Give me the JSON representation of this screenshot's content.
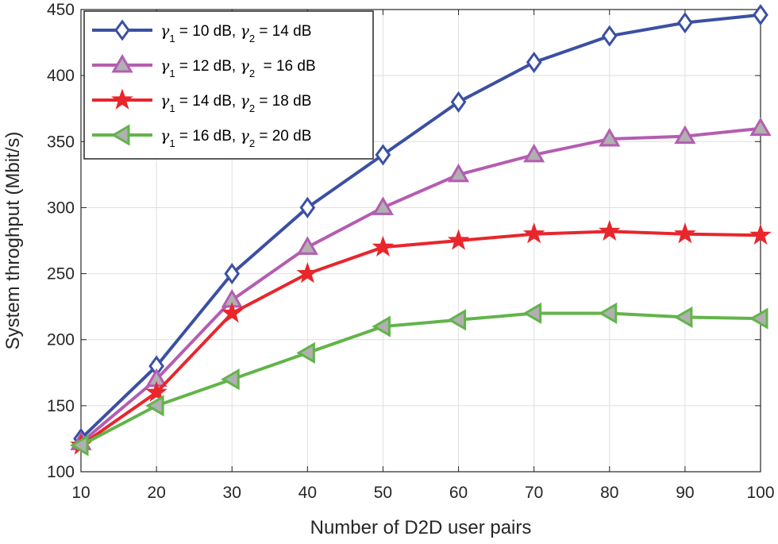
{
  "chart_data": {
    "type": "line",
    "xlabel": "Number of D2D user pairs",
    "ylabel": "System throghput (Mbit/s)",
    "xlim": [
      10,
      100
    ],
    "ylim": [
      100,
      450
    ],
    "xticks": [
      10,
      20,
      30,
      40,
      50,
      60,
      70,
      80,
      90,
      100
    ],
    "yticks": [
      100,
      150,
      200,
      250,
      300,
      350,
      400,
      450
    ],
    "grid": true,
    "legend_position": "top-left",
    "x": [
      10,
      20,
      30,
      40,
      50,
      60,
      70,
      80,
      90,
      100
    ],
    "series": [
      {
        "name": "γ1 = 10 dB, γ2 = 14 dB",
        "legend": {
          "g1": "γ",
          "s1": "1",
          "m1": " = 10 dB, ",
          "g2": "γ",
          "s2": "2",
          "m2": " = 14 dB"
        },
        "marker": "diamond",
        "color": "#3b50a3",
        "values": [
          125,
          180,
          250,
          300,
          340,
          380,
          410,
          430,
          440,
          446
        ]
      },
      {
        "name": "γ1 = 12 dB, γ2 = 16 dB",
        "legend": {
          "g1": "γ",
          "s1": "1",
          "m1": " = 12 dB, ",
          "g2": "γ",
          "s2": "2",
          "m2": "  = 16 dB"
        },
        "marker": "triangle-up",
        "color": "#b45db1",
        "values": [
          122,
          170,
          230,
          270,
          300,
          325,
          340,
          352,
          354,
          360
        ]
      },
      {
        "name": "γ1 = 14 dB, γ2 = 18 dB",
        "legend": {
          "g1": "γ",
          "s1": "1",
          "m1": " = 14 dB, ",
          "g2": "γ",
          "s2": "2",
          "m2": " = 18 dB"
        },
        "marker": "star",
        "color": "#e8262c",
        "values": [
          120,
          160,
          220,
          250,
          270,
          275,
          280,
          282,
          280,
          279
        ]
      },
      {
        "name": "γ1 = 16 dB, γ2 = 20 dB",
        "legend": {
          "g1": "γ",
          "s1": "1",
          "m1": " = 16 dB, ",
          "g2": "γ",
          "s2": "2",
          "m2": " = 20 dB"
        },
        "marker": "triangle-left",
        "color": "#62b44a",
        "values": [
          120,
          150,
          170,
          190,
          210,
          215,
          220,
          220,
          217,
          216
        ]
      }
    ]
  }
}
